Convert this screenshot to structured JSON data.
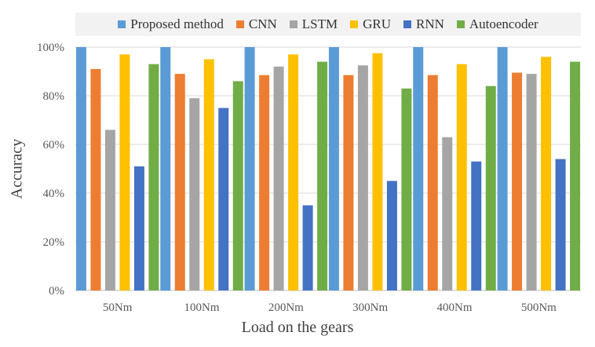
{
  "chart_data": {
    "type": "bar",
    "xlabel": "Load on the gears",
    "ylabel": "Accuracy",
    "ylim": [
      0,
      100
    ],
    "ytick_step": 20,
    "ytick_suffix": "%",
    "grid": true,
    "legend_position": "top",
    "categories": [
      "50Nm",
      "100Nm",
      "200Nm",
      "300Nm",
      "400Nm",
      "500Nm"
    ],
    "series": [
      {
        "name": "Proposed method",
        "color": "#5b9bd5",
        "values": [
          100,
          100,
          100,
          100,
          100,
          100
        ]
      },
      {
        "name": "CNN",
        "color": "#ed7d31",
        "values": [
          91,
          89,
          88.5,
          88.5,
          88.5,
          89.5
        ]
      },
      {
        "name": "LSTM",
        "color": "#a5a5a5",
        "values": [
          66,
          79,
          92,
          92.5,
          63,
          89
        ]
      },
      {
        "name": "GRU",
        "color": "#ffc000",
        "values": [
          97,
          95,
          97,
          97.5,
          93,
          96
        ]
      },
      {
        "name": "RNN",
        "color": "#4472c4",
        "values": [
          51,
          75,
          35,
          45,
          53,
          54
        ]
      },
      {
        "name": "Autoencoder",
        "color": "#70ad47",
        "values": [
          93,
          86,
          94,
          83,
          84,
          94
        ]
      }
    ]
  }
}
